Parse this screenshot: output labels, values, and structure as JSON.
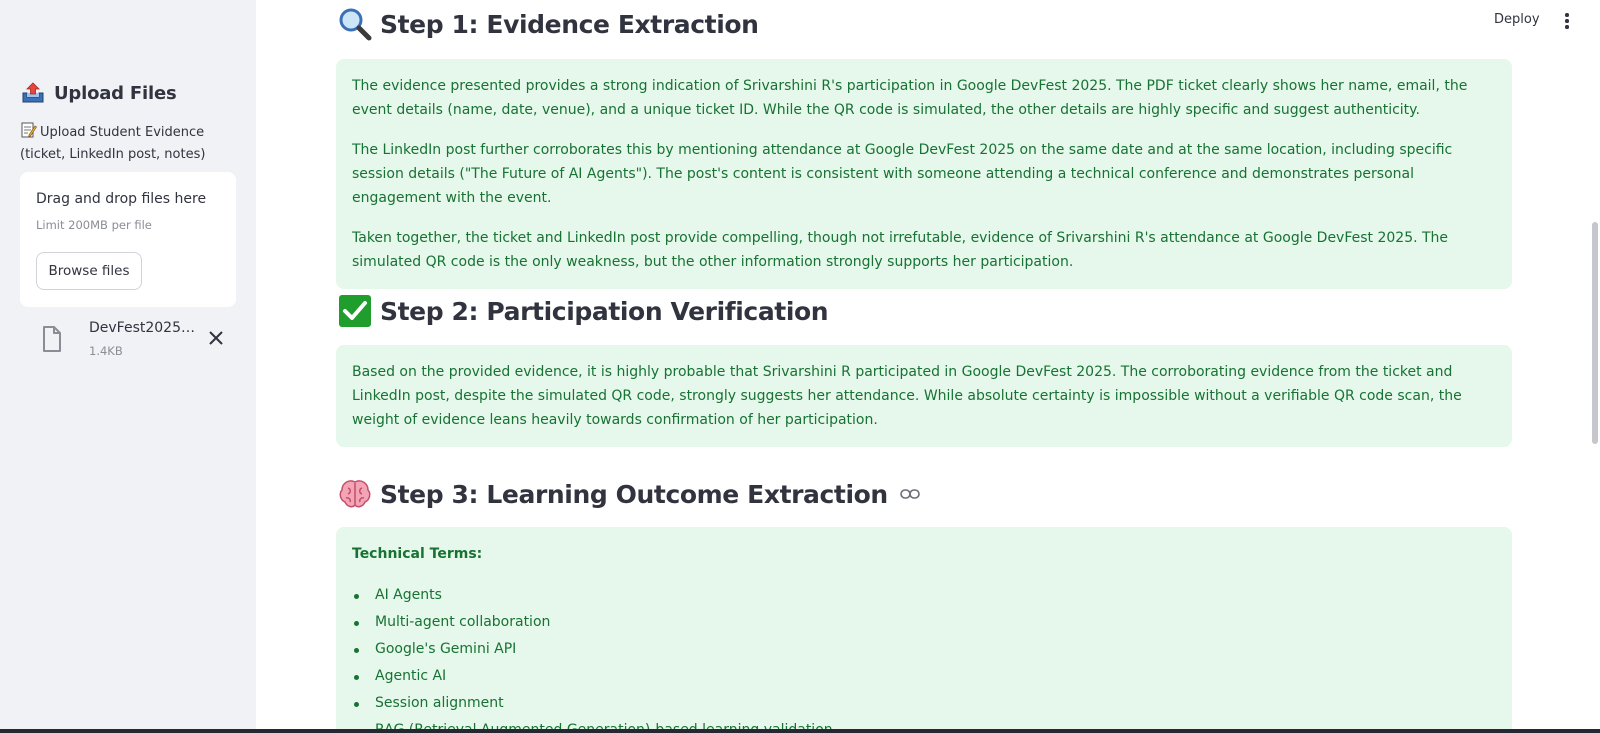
{
  "sidebar": {
    "header_icon": "outbox-tray-icon",
    "header_title": "Upload Files",
    "uploader_label_icon": "memo-icon",
    "uploader_label": "Upload Student Evidence (ticket, LinkedIn post, notes)",
    "dropzone_title": "Drag and drop files here",
    "dropzone_limit": "Limit 200MB per file",
    "browse_label": "Browse files",
    "file": {
      "icon": "file-icon",
      "name": "DevFest2025_…",
      "size": "1.4KB"
    }
  },
  "toolbar": {
    "deploy_label": "Deploy",
    "menu_icon": "kebab-menu-icon"
  },
  "steps": {
    "step1": {
      "icon": "magnifying-glass-icon",
      "title": "Step 1: Evidence Extraction",
      "paragraphs": [
        "The evidence presented provides a strong indication of Srivarshini R's participation in Google DevFest 2025. The PDF ticket clearly shows her name, email, the event details (name, date, venue), and a unique ticket ID. While the QR code is simulated, the other details are highly specific and suggest authenticity.",
        "The LinkedIn post further corroborates this by mentioning attendance at Google DevFest 2025 on the same date and at the same location, including specific session details (\"The Future of AI Agents\"). The post's content is consistent with someone attending a technical conference and demonstrates personal engagement with the event.",
        "Taken together, the ticket and LinkedIn post provide compelling, though not irrefutable, evidence of Srivarshini R's attendance at Google DevFest 2025. The simulated QR code is the only weakness, but the other information strongly supports her participation."
      ]
    },
    "step2": {
      "icon": "check-mark-button-icon",
      "title": "Step 2: Participation Verification",
      "paragraph": "Based on the provided evidence, it is highly probable that Srivarshini R participated in Google DevFest 2025. The corroborating evidence from the ticket and LinkedIn post, despite the simulated QR code, strongly suggests her attendance. While absolute certainty is impossible without a verifiable QR code scan, the weight of evidence leans heavily towards confirmation of her participation."
    },
    "step3": {
      "icon": "brain-icon",
      "title": "Step 3: Learning Outcome Extraction",
      "anchor_icon": "link-icon",
      "terms_heading": "Technical Terms:",
      "terms": [
        "AI Agents",
        "Multi-agent collaboration",
        "Google's Gemini API",
        "Agentic AI",
        "Session alignment",
        "RAG (Retrieval Augmented Generation)-based learning validation"
      ]
    }
  },
  "colors": {
    "sidebar_bg": "#f0f2f6",
    "success_bg": "#e6f8eb",
    "success_text": "#177233",
    "text": "#31333f"
  }
}
